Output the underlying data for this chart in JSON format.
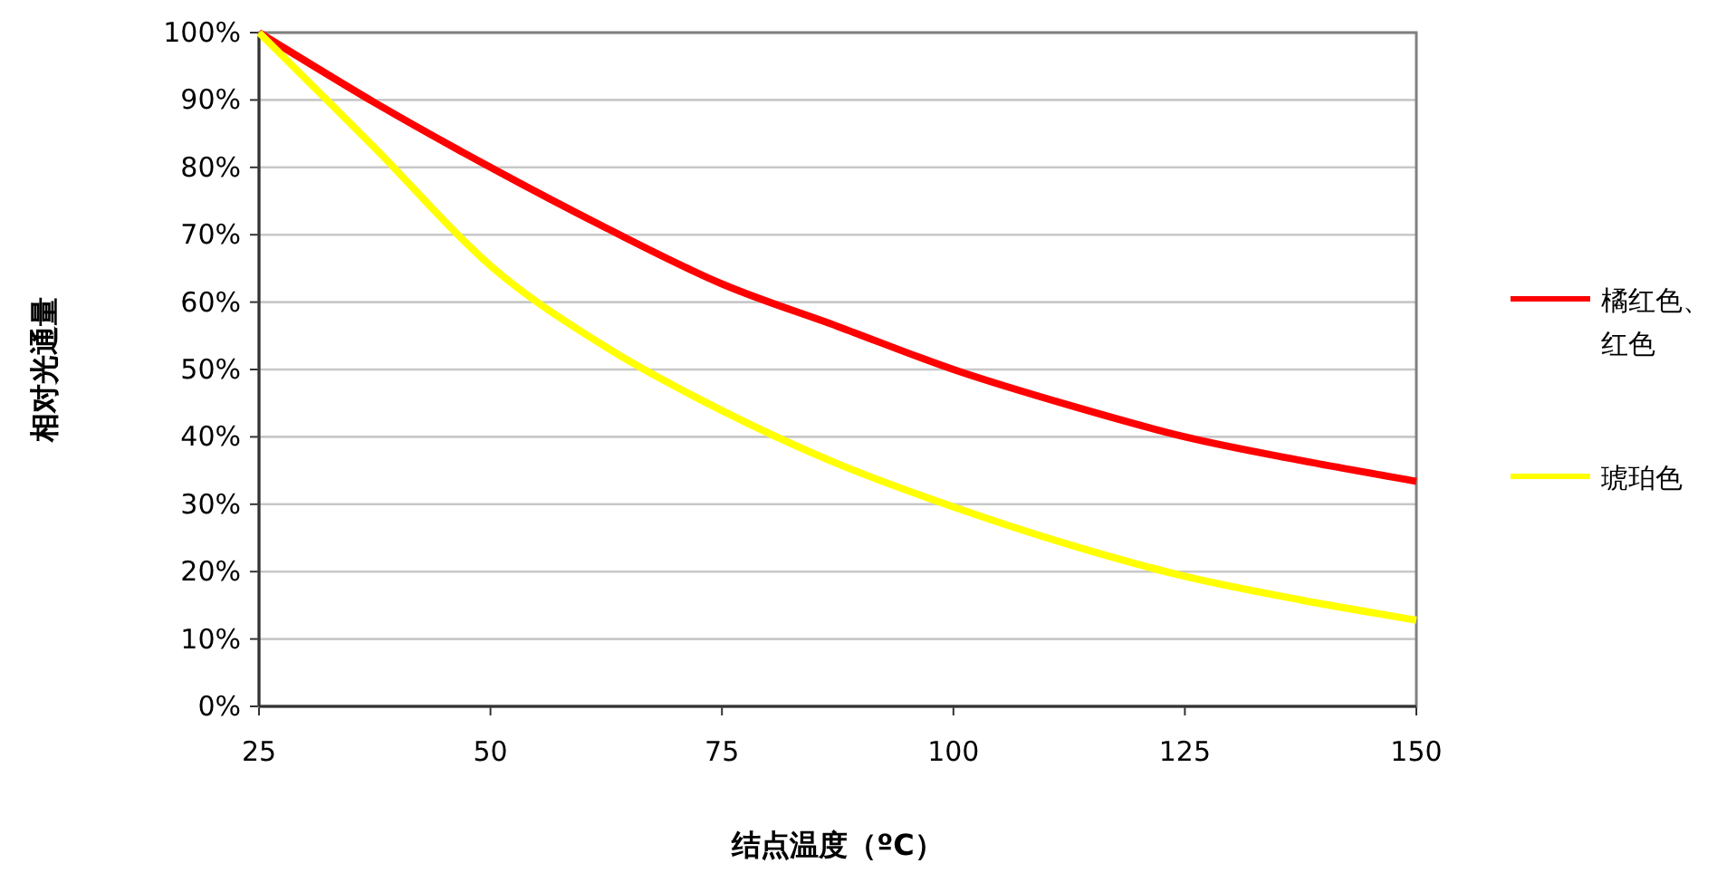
{
  "chart_data": {
    "type": "line",
    "xlabel": "结点温度（ºC）",
    "ylabel": "相对光通量",
    "x": [
      25,
      37.5,
      50,
      62.5,
      75,
      87.5,
      100,
      112.5,
      125,
      137.5,
      150
    ],
    "series": [
      {
        "name": "橘红色、红色",
        "color": "#ff0000",
        "values": [
          100,
          89.6,
          80,
          71,
          62.7,
          56.4,
          50,
          44.7,
          40,
          36.5,
          33.4
        ]
      },
      {
        "name": "琥珀色",
        "color": "#ffff00",
        "values": [
          100,
          82.9,
          65.4,
          53.3,
          43.9,
          36,
          29.6,
          24,
          19.3,
          15.8,
          12.8
        ]
      }
    ],
    "xlim": [
      25,
      150
    ],
    "xticks": [
      25,
      50,
      75,
      100,
      125,
      150
    ],
    "ylim": [
      0,
      100
    ],
    "yticks": [
      {
        "value": 0,
        "label": "0%"
      },
      {
        "value": 10,
        "label": "10%"
      },
      {
        "value": 20,
        "label": "20%"
      },
      {
        "value": 30,
        "label": "30%"
      },
      {
        "value": 40,
        "label": "40%"
      },
      {
        "value": 50,
        "label": "50%"
      },
      {
        "value": 60,
        "label": "60%"
      },
      {
        "value": 70,
        "label": "70%"
      },
      {
        "value": 80,
        "label": "80%"
      },
      {
        "value": 90,
        "label": "90%"
      },
      {
        "value": 100,
        "label": "100%"
      }
    ],
    "grid": "y",
    "legend": "right",
    "marker": "none",
    "line_style": "solid"
  }
}
